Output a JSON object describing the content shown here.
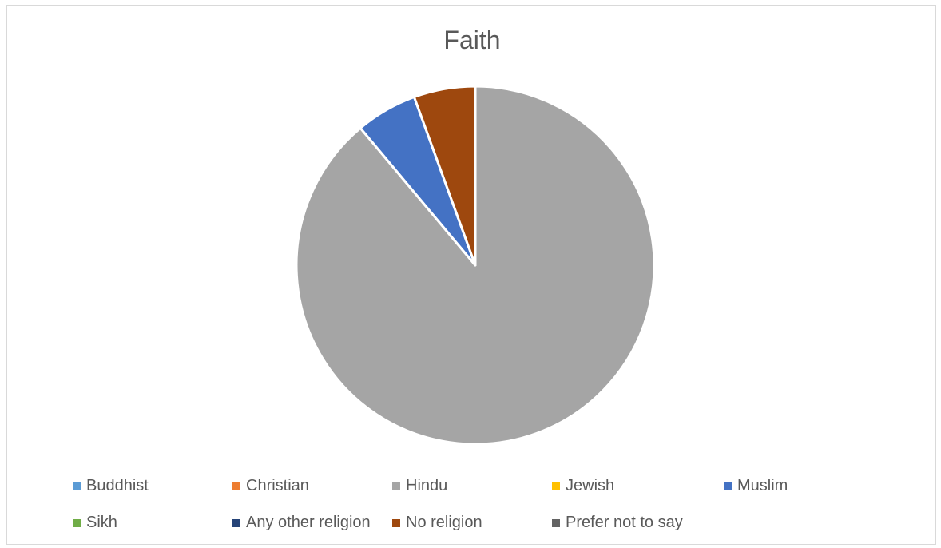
{
  "chart_data": {
    "type": "pie",
    "title": "Faith",
    "legend_position": "bottom",
    "slices": [
      {
        "label": "Buddhist",
        "value": 0,
        "color": "#5B9BD5"
      },
      {
        "label": "Christian",
        "value": 0,
        "color": "#ED7D31"
      },
      {
        "label": "Hindu",
        "value": 88.9,
        "color": "#A5A5A5"
      },
      {
        "label": "Jewish",
        "value": 0,
        "color": "#FFC000"
      },
      {
        "label": "Muslim",
        "value": 5.55,
        "color": "#4472C4"
      },
      {
        "label": "Sikh",
        "value": 0,
        "color": "#70AD47"
      },
      {
        "label": "Any other religion",
        "value": 0,
        "color": "#264478"
      },
      {
        "label": "No religion",
        "value": 5.55,
        "color": "#9E480E"
      },
      {
        "label": "Prefer not to say",
        "value": 0,
        "color": "#636363"
      }
    ]
  }
}
